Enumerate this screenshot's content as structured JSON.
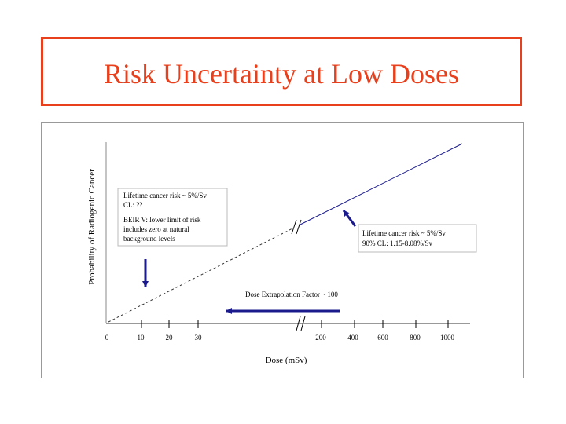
{
  "slide": {
    "title": "Risk Uncertainty at Low Doses"
  },
  "chart_data": {
    "type": "line",
    "title": "",
    "xlabel": "Dose (mSv)",
    "ylabel": "Probability of Radiogenic Cancer",
    "x_ticks": [
      "0",
      "10",
      "20",
      "30",
      "200",
      "400",
      "600",
      "800",
      "1000"
    ],
    "axis_break": true,
    "series": [
      {
        "style": "dashed",
        "x": [
          0,
          200
        ],
        "y": [
          0,
          0.55
        ]
      },
      {
        "style": "solid",
        "x": [
          200,
          1000
        ],
        "y": [
          0.55,
          1.0
        ]
      }
    ],
    "annotations": {
      "left_box": {
        "line1": "Lifetime cancer risk ~ 5%/Sv",
        "line2": "CL: ??",
        "line3": "BEIR V: lower limit of risk",
        "line4": "includes zero at natural",
        "line5": "background levels"
      },
      "right_box": {
        "line1": "Lifetime cancer risk ~ 5%/Sv",
        "line2": "90% CL: 1.15-8.08%/Sv"
      },
      "extrapolation": "Dose Extrapolation Factor ~ 100"
    }
  }
}
